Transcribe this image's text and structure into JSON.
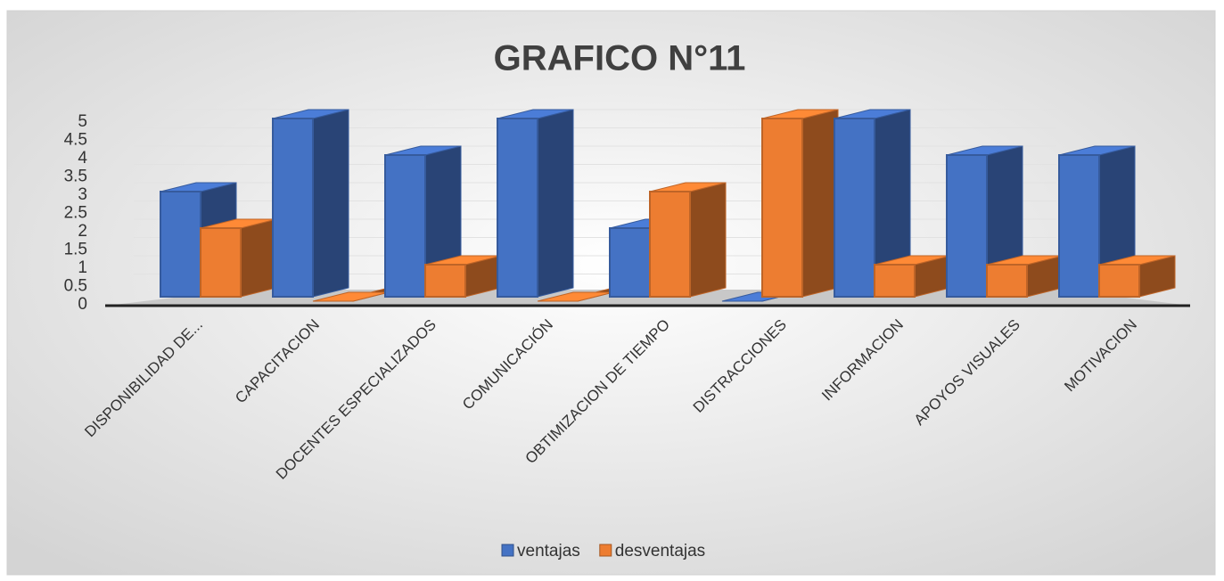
{
  "chart_data": {
    "type": "bar3d",
    "title": "GRAFICO N°11",
    "categories": [
      "DISPONIBILIDAD DE...",
      "CAPACITACION",
      "DOCENTES ESPECIALIZADOS",
      "COMUNICACIÓN",
      "OBTIMIZACION DE TIEMPO",
      "DISTRACCIONES",
      "INFORMACION",
      "APOYOS VISUALES",
      "MOTIVACION"
    ],
    "series": [
      {
        "name": "ventajas",
        "color": "#4472c4",
        "values": [
          3,
          5,
          4,
          5,
          2,
          0,
          5,
          4,
          4
        ]
      },
      {
        "name": "desventajas",
        "color": "#ed7d31",
        "values": [
          2,
          0,
          1,
          0,
          3,
          5,
          1,
          1,
          1
        ]
      }
    ],
    "ylim": [
      0,
      5
    ],
    "yticks": [
      0,
      0.5,
      1,
      1.5,
      2,
      2.5,
      3,
      3.5,
      4,
      4.5,
      5
    ],
    "grid": true,
    "legend": "bottom"
  }
}
